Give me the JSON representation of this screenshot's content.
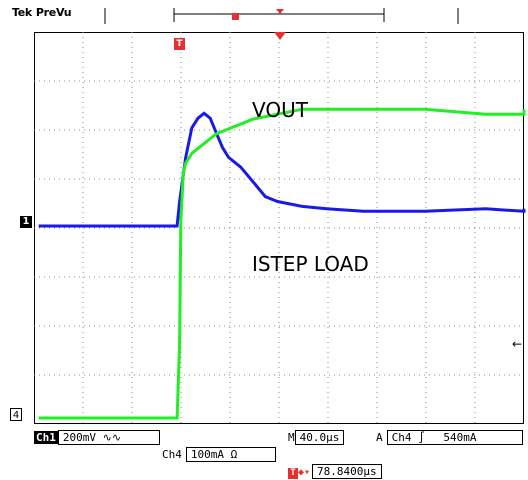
{
  "header": {
    "brand": "Tek",
    "mode": "PreVu"
  },
  "screen": {
    "vout_label": "VOUT",
    "istep_label": "ISTEP LOAD",
    "ch1_marker": "1",
    "ch4_marker": "4",
    "trigger_marker": "T"
  },
  "status": {
    "ch1_tag": "Ch1",
    "ch1_scale": "200mV",
    "ch1_coupling": "∿∿",
    "timebase_tag": "M",
    "timebase": "40.0μs",
    "trigger_tag": "A",
    "trigger_source": "Ch4",
    "trigger_slope": "∫",
    "trigger_level": "540mA",
    "ch4_tag": "Ch4",
    "ch4_scale": "100mA Ω",
    "trigger_position": "78.8400μs",
    "trig_t": "T"
  },
  "colors": {
    "vout_trace": "#1a1ae6",
    "istep_trace": "#22ee22",
    "trigger_red": "#e53030",
    "grid": "#888888"
  },
  "chart_data": {
    "type": "line",
    "series": [
      {
        "name": "VOUT",
        "color": "#1a1ae6",
        "time_us": [
          -115,
          -80,
          -40,
          -2,
          0,
          5,
          10,
          15,
          20,
          25,
          30,
          35,
          40,
          50,
          60,
          70,
          80,
          100,
          120,
          150,
          200,
          250,
          300,
          350
        ],
        "volts": [
          0.0,
          0.0,
          0.0,
          0.0,
          0.1,
          0.28,
          0.4,
          0.44,
          0.46,
          0.44,
          0.38,
          0.32,
          0.28,
          0.24,
          0.18,
          0.12,
          0.1,
          0.08,
          0.07,
          0.06,
          0.06,
          0.07,
          0.06,
          0.07
        ]
      },
      {
        "name": "ISTEP LOAD",
        "color": "#22ee22",
        "time_us": [
          -115,
          -80,
          -40,
          -2,
          0,
          1,
          3,
          5,
          10,
          20,
          30,
          40,
          60,
          80,
          100,
          150,
          200,
          250,
          300,
          350
        ],
        "amps": [
          0.0,
          0.0,
          0.0,
          0.0,
          0.15,
          0.4,
          0.5,
          0.52,
          0.54,
          0.56,
          0.58,
          0.59,
          0.61,
          0.62,
          0.63,
          0.63,
          0.63,
          0.62,
          0.62,
          0.63
        ]
      }
    ],
    "xlim_us": [
      -118.84,
      281.16
    ],
    "v_per_div": 0.2,
    "a_per_div": 0.1,
    "grid": true
  }
}
